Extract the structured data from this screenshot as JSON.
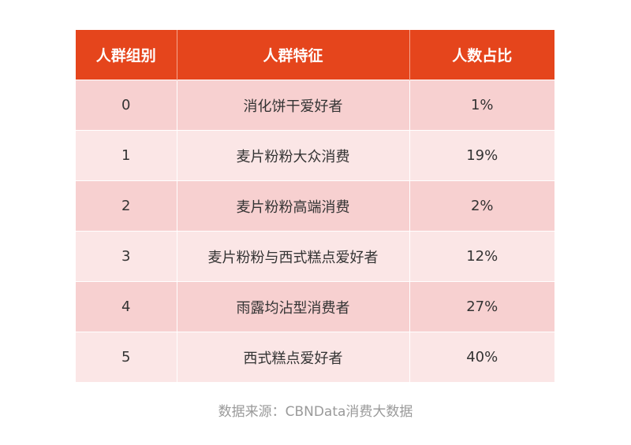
{
  "table": {
    "headers": [
      "人群组别",
      "人群特征",
      "人数占比"
    ],
    "rows": [
      {
        "group": "0",
        "feature": "消化饼干爱好者",
        "share": "1%"
      },
      {
        "group": "1",
        "feature": "麦片粉粉大众消费",
        "share": "19%"
      },
      {
        "group": "2",
        "feature": "麦片粉粉高端消费",
        "share": "2%"
      },
      {
        "group": "3",
        "feature": "麦片粉粉与西式糕点爱好者",
        "share": "12%"
      },
      {
        "group": "4",
        "feature": "雨露均沾型消费者",
        "share": "27%"
      },
      {
        "group": "5",
        "feature": "西式糕点爱好者",
        "share": "40%"
      }
    ]
  },
  "source": "数据来源：CBNData消费大数据",
  "colors": {
    "header_bg": "#e5451c",
    "row_odd_bg": "#f7d0d0",
    "row_even_bg": "#fbe6e6"
  }
}
